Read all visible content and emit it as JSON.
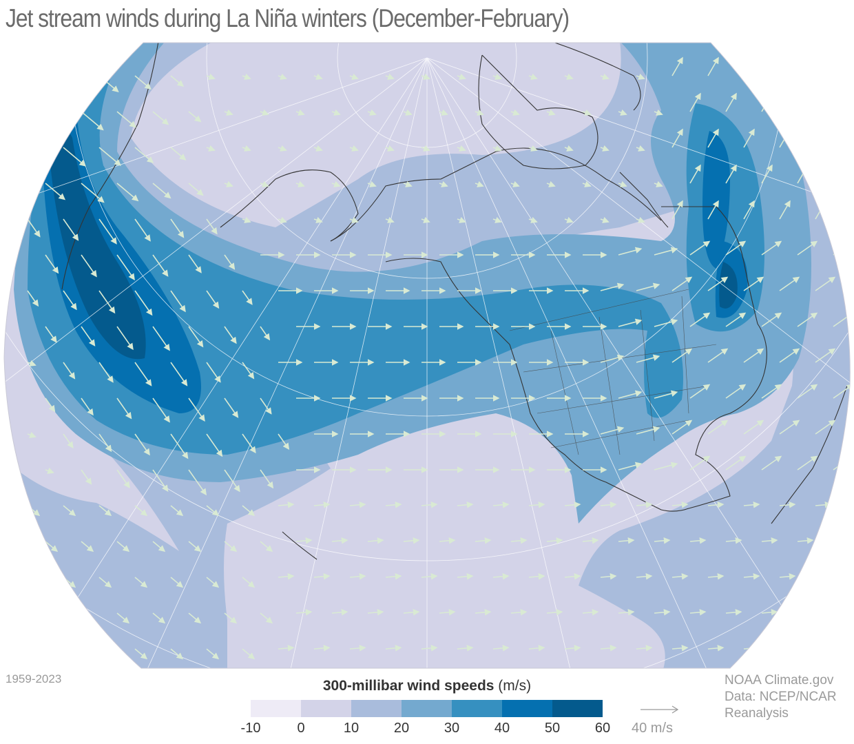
{
  "title": "Jet stream winds during La Niña winters (December-February)",
  "period": "1959-2023",
  "credit": [
    "NOAA Climate.gov",
    "Data: NCEP/NCAR",
    "Reanalysis"
  ],
  "legend": {
    "title_bold": "300-millibar wind speeds",
    "title_unit": "(m/s)",
    "ticks": [
      "-10",
      "0",
      "10",
      "20",
      "30",
      "40",
      "50",
      "60"
    ],
    "colors": [
      "#eeebf6",
      "#d3d3e8",
      "#a9bcdc",
      "#74a9cf",
      "#3690c0",
      "#0570b0",
      "#045a8d"
    ]
  },
  "reference_arrow": {
    "label": "40 m/s",
    "speed": 40
  },
  "colors": {
    "land_outline": "#333333",
    "arrow": "#d9ead3",
    "graticule": "#ffffff"
  }
}
